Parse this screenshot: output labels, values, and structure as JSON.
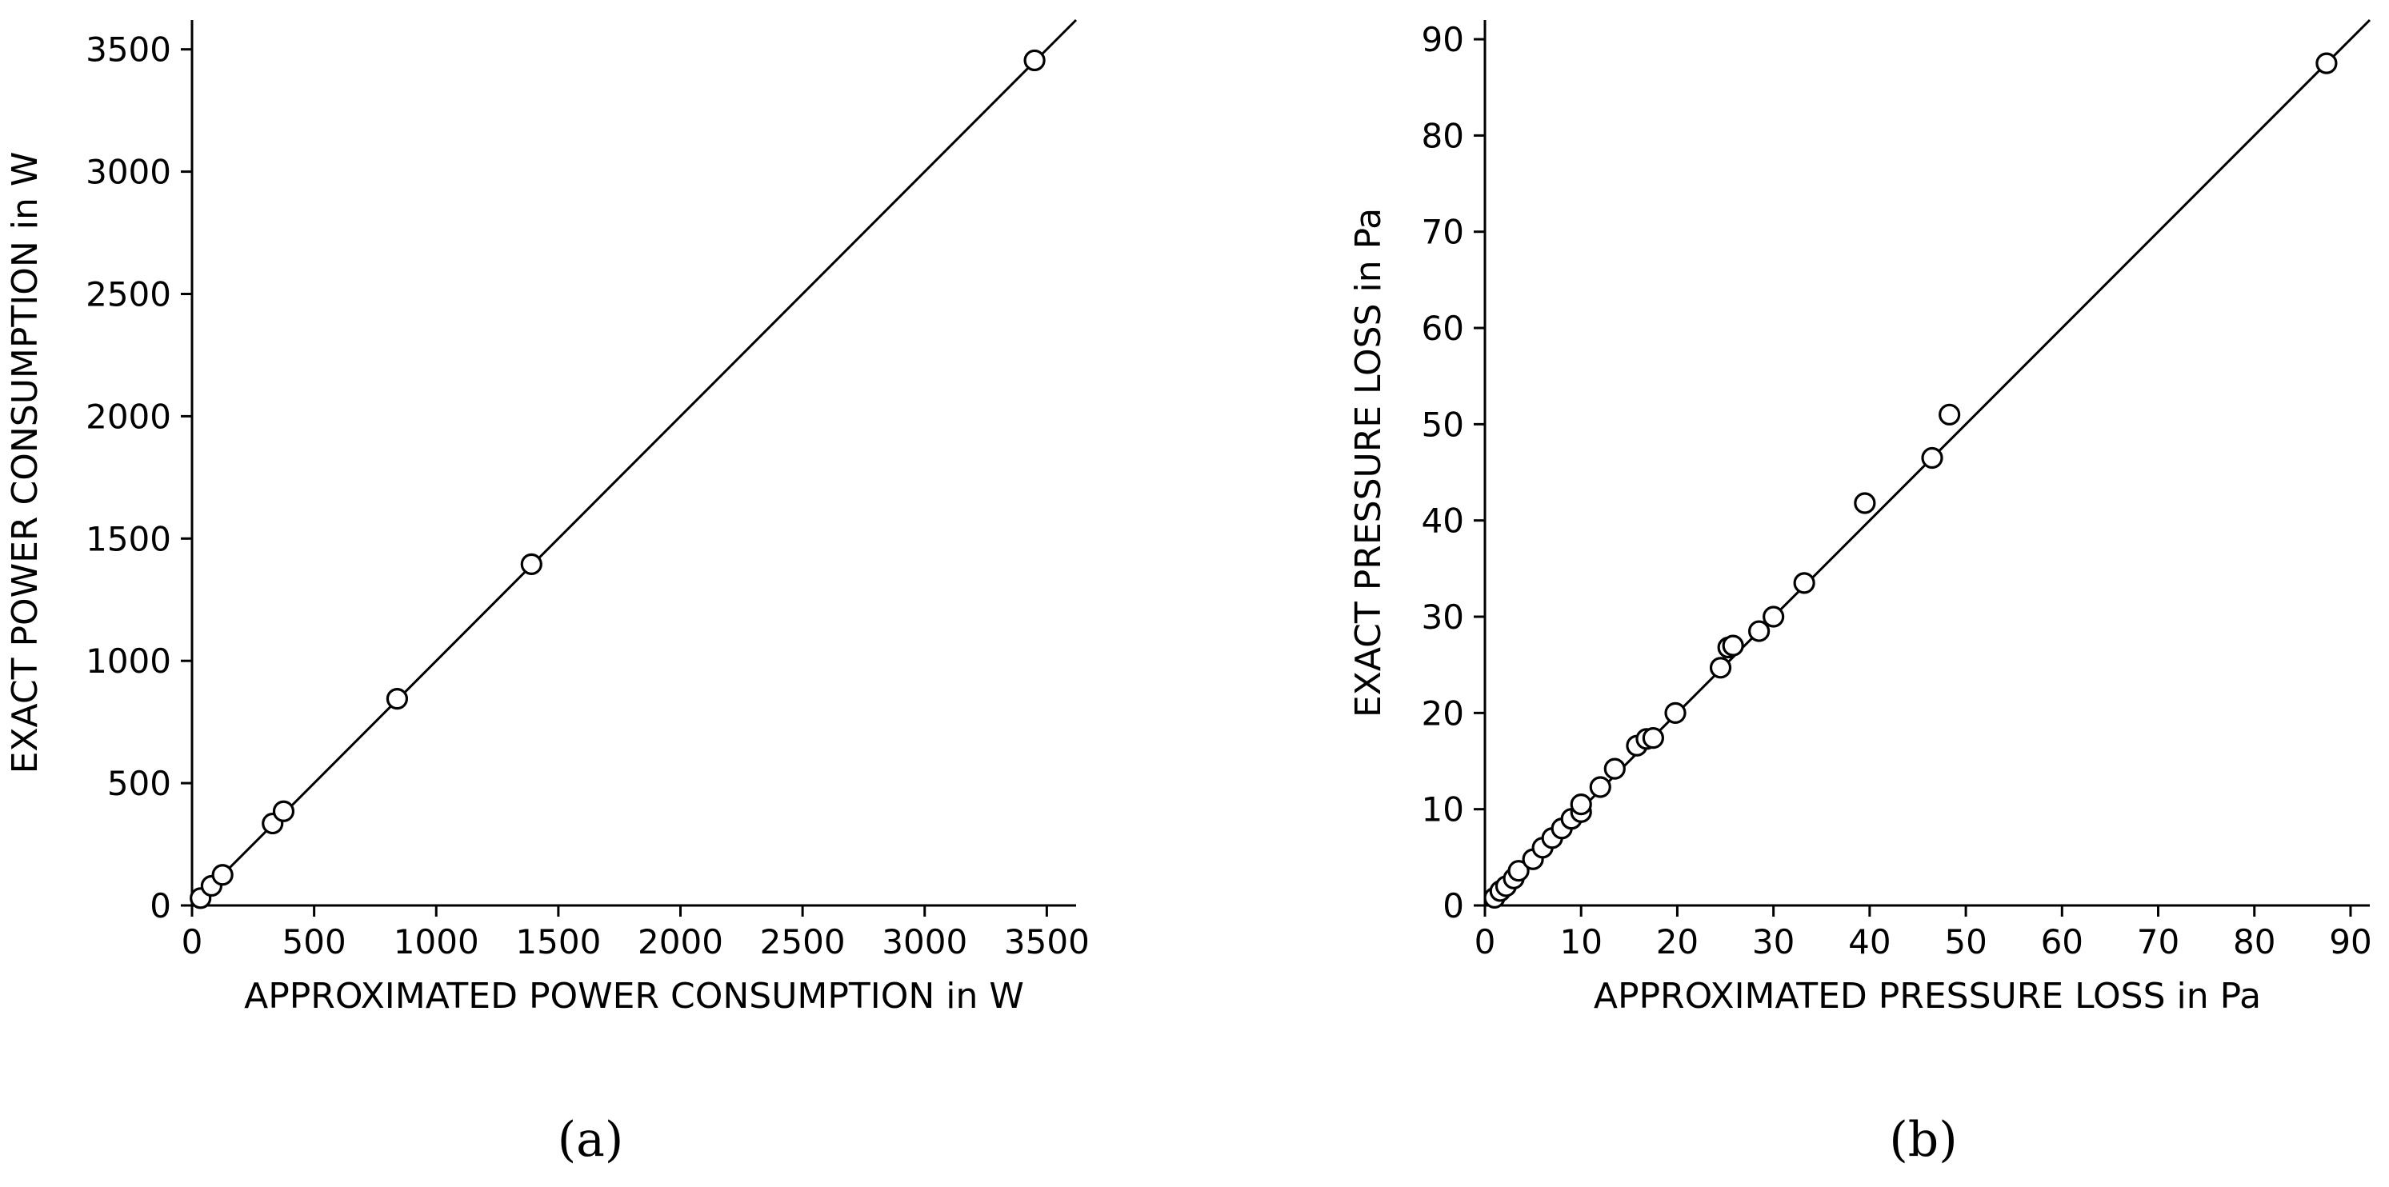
{
  "chart_data": [
    {
      "type": "scatter",
      "panel_label": "(a)",
      "xlabel": "APPROXIMATED POWER CONSUMPTION in W",
      "ylabel": "EXACT POWER CONSUMPTION in W",
      "xlim": [
        0,
        3620
      ],
      "ylim": [
        0,
        3620
      ],
      "xticks": [
        0,
        500,
        1000,
        1500,
        2000,
        2500,
        3000,
        3500
      ],
      "yticks": [
        0,
        500,
        1000,
        1500,
        2000,
        2500,
        3000,
        3500
      ],
      "grid": false,
      "legend": "none",
      "reference_line": "y = x",
      "points": [
        {
          "x": 35,
          "y": 30
        },
        {
          "x": 80,
          "y": 80
        },
        {
          "x": 125,
          "y": 125
        },
        {
          "x": 330,
          "y": 335
        },
        {
          "x": 375,
          "y": 385
        },
        {
          "x": 840,
          "y": 845
        },
        {
          "x": 1390,
          "y": 1395
        },
        {
          "x": 3450,
          "y": 3455
        }
      ]
    },
    {
      "type": "scatter",
      "panel_label": "(b)",
      "xlabel": "APPROXIMATED PRESSURE LOSS in Pa",
      "ylabel": "EXACT PRESSURE LOSS in Pa",
      "xlim": [
        0,
        92
      ],
      "ylim": [
        0,
        92
      ],
      "xticks": [
        0,
        10,
        20,
        30,
        40,
        50,
        60,
        70,
        80,
        90
      ],
      "yticks": [
        0,
        10,
        20,
        30,
        40,
        50,
        60,
        70,
        80,
        90
      ],
      "grid": false,
      "legend": "none",
      "reference_line": "y = x",
      "points": [
        {
          "x": 1.0,
          "y": 0.8
        },
        {
          "x": 1.6,
          "y": 1.5
        },
        {
          "x": 2.2,
          "y": 2.0
        },
        {
          "x": 3.0,
          "y": 2.8
        },
        {
          "x": 3.5,
          "y": 3.6
        },
        {
          "x": 5.0,
          "y": 4.8
        },
        {
          "x": 6.0,
          "y": 6.0
        },
        {
          "x": 7.0,
          "y": 7.0
        },
        {
          "x": 8.0,
          "y": 8.0
        },
        {
          "x": 9.0,
          "y": 9.0
        },
        {
          "x": 10.0,
          "y": 9.7
        },
        {
          "x": 10.0,
          "y": 10.5
        },
        {
          "x": 12.0,
          "y": 12.3
        },
        {
          "x": 13.5,
          "y": 14.2
        },
        {
          "x": 15.8,
          "y": 16.6
        },
        {
          "x": 16.8,
          "y": 17.3
        },
        {
          "x": 17.5,
          "y": 17.4
        },
        {
          "x": 19.8,
          "y": 20.0
        },
        {
          "x": 24.5,
          "y": 24.7
        },
        {
          "x": 25.3,
          "y": 26.8
        },
        {
          "x": 25.8,
          "y": 27.0
        },
        {
          "x": 28.5,
          "y": 28.5
        },
        {
          "x": 30.0,
          "y": 30.0
        },
        {
          "x": 33.2,
          "y": 33.5
        },
        {
          "x": 39.5,
          "y": 41.8
        },
        {
          "x": 46.5,
          "y": 46.5
        },
        {
          "x": 48.3,
          "y": 51.0
        },
        {
          "x": 87.5,
          "y": 87.5
        }
      ]
    }
  ]
}
